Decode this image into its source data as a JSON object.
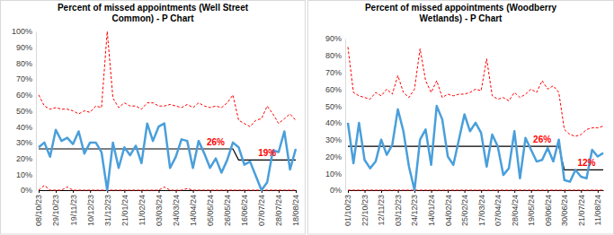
{
  "chart_data": [
    {
      "type": "line",
      "title": "Percent of missed appointments (Well Street Common) - P Chart",
      "categories": [
        "08/10/23",
        null,
        null,
        "29/10/23",
        null,
        null,
        "19/11/23",
        null,
        null,
        "10/12/23",
        null,
        null,
        "31/12/23",
        null,
        null,
        "21/01/24",
        null,
        null,
        "11/02/24",
        null,
        null,
        "03/03/24",
        null,
        null,
        "24/03/24",
        null,
        null,
        "14/04/24",
        null,
        null,
        "05/05/24",
        null,
        null,
        "26/05/24",
        null,
        null,
        "16/06/24",
        null,
        null,
        "07/07/24",
        null,
        null,
        "28/07/24",
        null,
        null,
        "18/08/24"
      ],
      "ylim": [
        0,
        100
      ],
      "yticks": [
        {
          "value": 0,
          "label": "0%"
        },
        {
          "value": 10,
          "label": "10%"
        },
        {
          "value": 20,
          "label": "20%"
        },
        {
          "value": 30,
          "label": "30%"
        },
        {
          "value": 40,
          "label": "40%"
        },
        {
          "value": 50,
          "label": "50%"
        },
        {
          "value": 60,
          "label": "60%"
        },
        {
          "value": 70,
          "label": "70%"
        },
        {
          "value": 80,
          "label": "80%"
        },
        {
          "value": 90,
          "label": "90%"
        },
        {
          "value": 100,
          "label": "100%"
        }
      ],
      "grid": false,
      "series": [
        {
          "color": "#4a9fdb",
          "line_style": "solid",
          "values": [
            27,
            30,
            21,
            38,
            31,
            33,
            29,
            37,
            23,
            30,
            30,
            24,
            0,
            30,
            14,
            27,
            22,
            28,
            17,
            42,
            31,
            40,
            42,
            14,
            21,
            32,
            31,
            14,
            31,
            23,
            14,
            20,
            11,
            19,
            30,
            27,
            16,
            18,
            9,
            0,
            5,
            25,
            24,
            37,
            13,
            26
          ]
        },
        {
          "color": "#000000",
          "line_style": "solid",
          "values": [
            26,
            26,
            26,
            26,
            26,
            26,
            26,
            26,
            26,
            26,
            26,
            26,
            26,
            26,
            26,
            26,
            26,
            26,
            26,
            26,
            26,
            26,
            26,
            26,
            26,
            26,
            26,
            26,
            26,
            26,
            26,
            26,
            26,
            26,
            26,
            19,
            19,
            19,
            19,
            19,
            19,
            19,
            19,
            19,
            19,
            19
          ]
        },
        {
          "color": "#ff0000",
          "line_style": "dashed",
          "values": [
            60,
            53,
            51,
            52,
            51,
            51,
            50,
            48,
            50,
            49,
            53,
            52,
            100,
            58,
            52,
            55,
            53,
            53,
            51,
            55,
            55,
            53,
            53,
            54,
            53,
            52,
            54,
            52,
            55,
            53,
            52,
            53,
            52,
            55,
            60,
            44,
            42,
            40,
            44,
            45,
            53,
            48,
            42,
            45,
            48,
            44
          ]
        },
        {
          "color": "#ff0000",
          "line_style": "dashed",
          "values": [
            0,
            3,
            0,
            0,
            0,
            2,
            0,
            0,
            0,
            0,
            0,
            0,
            0,
            0,
            0,
            0,
            0,
            0,
            0,
            0,
            0,
            0,
            2,
            0,
            0,
            0,
            1,
            0,
            0,
            0,
            0,
            0,
            0,
            0,
            0,
            0,
            0,
            0,
            0,
            0,
            0,
            0,
            0,
            0,
            0,
            0
          ]
        }
      ],
      "annotations": [
        {
          "label": "26%",
          "value": 26
        },
        {
          "label": "19%",
          "value": 19
        }
      ]
    },
    {
      "type": "line",
      "title": "Percent of missed appointments (Woodberry Wetlands) - P Chart",
      "categories": [
        "01/10/23",
        null,
        null,
        "22/10/23",
        null,
        null,
        "12/11/23",
        null,
        null,
        "03/12/23",
        null,
        null,
        "24/12/23",
        null,
        null,
        "14/01/24",
        null,
        null,
        "04/02/24",
        null,
        null,
        "25/02/24",
        null,
        null,
        "17/03/24",
        null,
        null,
        "07/04/24",
        null,
        null,
        "28/04/24",
        null,
        null,
        "19/05/24",
        null,
        null,
        "09/06/24",
        null,
        null,
        "30/06/24",
        null,
        null,
        "21/07/24",
        null,
        null,
        "11/08/24",
        null
      ],
      "ylim": [
        0,
        90
      ],
      "yticks": [
        {
          "value": 0,
          "label": "0%"
        },
        {
          "value": 10,
          "label": "10%"
        },
        {
          "value": 20,
          "label": "20%"
        },
        {
          "value": 30,
          "label": "30%"
        },
        {
          "value": 40,
          "label": "40%"
        },
        {
          "value": 50,
          "label": "50%"
        },
        {
          "value": 60,
          "label": "60%"
        },
        {
          "value": 70,
          "label": "70%"
        },
        {
          "value": 80,
          "label": "80%"
        },
        {
          "value": 90,
          "label": "90%"
        }
      ],
      "grid": false,
      "series": [
        {
          "color": "#4a9fdb",
          "line_style": "solid",
          "values": [
            40,
            16,
            40,
            18,
            13,
            17,
            30,
            21,
            27,
            48,
            35,
            14,
            0,
            30,
            36,
            15,
            50,
            42,
            20,
            15,
            30,
            45,
            35,
            40,
            34,
            14,
            33,
            26,
            9,
            13,
            35,
            7,
            31,
            24,
            17,
            18,
            25,
            17,
            30,
            6,
            5,
            12,
            8,
            7,
            24,
            20,
            22
          ]
        },
        {
          "color": "#000000",
          "line_style": "solid",
          "values": [
            26,
            26,
            26,
            26,
            26,
            26,
            26,
            26,
            26,
            26,
            26,
            26,
            26,
            26,
            26,
            26,
            26,
            26,
            26,
            26,
            26,
            26,
            26,
            26,
            26,
            26,
            26,
            26,
            26,
            26,
            26,
            26,
            26,
            26,
            26,
            26,
            26,
            26,
            26,
            12,
            12,
            12,
            12,
            12,
            12,
            12,
            12
          ]
        },
        {
          "color": "#ff0000",
          "line_style": "dashed",
          "values": [
            85,
            58,
            56,
            55,
            54,
            58,
            56,
            60,
            57,
            68,
            58,
            55,
            60,
            84,
            65,
            58,
            65,
            55,
            57,
            56,
            57,
            57,
            58,
            60,
            59,
            78,
            56,
            54,
            55,
            53,
            58,
            55,
            57,
            60,
            58,
            65,
            60,
            62,
            58,
            36,
            33,
            32,
            33,
            36,
            37,
            37,
            38
          ]
        },
        {
          "color": "#ff0000",
          "line_style": "dashed",
          "values": [
            0,
            0,
            0,
            0,
            0,
            0,
            0,
            0,
            0,
            0,
            0,
            0,
            0,
            0,
            0,
            0,
            0,
            0,
            0,
            0,
            0,
            0,
            0,
            0,
            0,
            0,
            0,
            0,
            0,
            0,
            0,
            0,
            0,
            0,
            0,
            0,
            0,
            0,
            0,
            0,
            0,
            0,
            0,
            0,
            0,
            0,
            0
          ]
        }
      ],
      "annotations": [
        {
          "label": "26%",
          "value": 26
        },
        {
          "label": "12%",
          "value": 12
        }
      ]
    }
  ]
}
